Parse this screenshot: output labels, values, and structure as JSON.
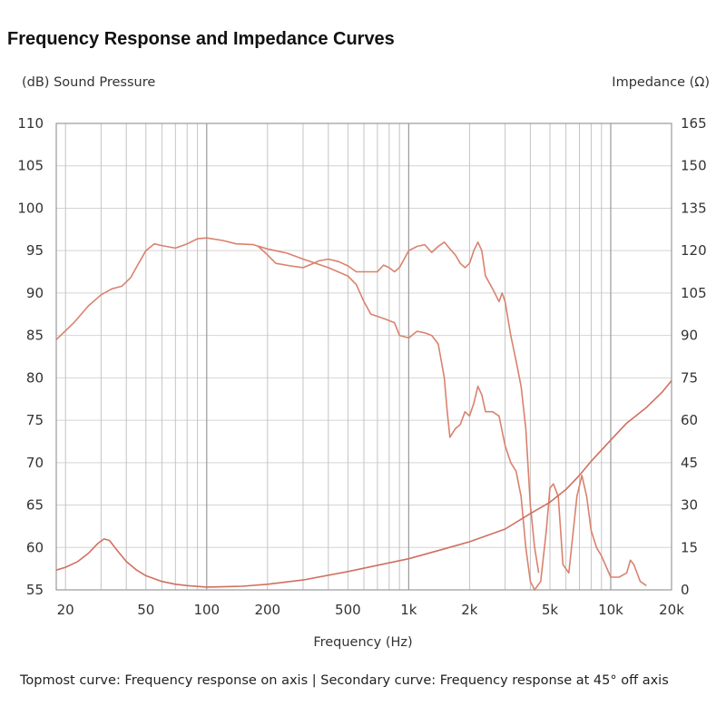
{
  "chart_data": {
    "type": "line",
    "title": "Frequency Response and Impedance Curves",
    "xlabel": "Frequency (Hz)",
    "ylabel_left": "(dB) Sound Pressure",
    "ylabel_right": "Impedance (Ω)",
    "xscale": "log",
    "xlim": [
      18,
      20000
    ],
    "ylim_left": [
      55,
      110
    ],
    "ylim_right": [
      0,
      165
    ],
    "grid": true,
    "x_ticks": [
      {
        "value": 20,
        "label": "20"
      },
      {
        "value": 50,
        "label": "50"
      },
      {
        "value": 100,
        "label": "100"
      },
      {
        "value": 200,
        "label": "200"
      },
      {
        "value": 500,
        "label": "500"
      },
      {
        "value": 1000,
        "label": "1k"
      },
      {
        "value": 2000,
        "label": "2k"
      },
      {
        "value": 5000,
        "label": "5k"
      },
      {
        "value": 10000,
        "label": "10k"
      },
      {
        "value": 20000,
        "label": "20k"
      }
    ],
    "y_ticks_left": [
      "55",
      "60",
      "65",
      "70",
      "75",
      "80",
      "85",
      "90",
      "95",
      "100",
      "105",
      "110"
    ],
    "y_ticks_right": [
      "0",
      "15",
      "30",
      "45",
      "60",
      "75",
      "90",
      "105",
      "120",
      "135",
      "150",
      "165"
    ],
    "caption": "Topmost curve: Frequency response on axis  |  Secondary curve: Frequency response at 45° off axis",
    "series": [
      {
        "axis": "left",
        "color": "#d9826e",
        "points": [
          [
            18,
            84.5
          ],
          [
            22,
            86.5
          ],
          [
            26,
            88.5
          ],
          [
            30,
            89.8
          ],
          [
            34,
            90.5
          ],
          [
            38,
            90.8
          ],
          [
            42,
            91.8
          ],
          [
            46,
            93.5
          ],
          [
            50,
            95
          ],
          [
            55,
            95.8
          ],
          [
            60,
            95.6
          ],
          [
            70,
            95.3
          ],
          [
            80,
            95.8
          ],
          [
            90,
            96.4
          ],
          [
            100,
            96.5
          ],
          [
            120,
            96.2
          ],
          [
            140,
            95.8
          ],
          [
            170,
            95.7
          ],
          [
            200,
            95.2
          ],
          [
            250,
            94.7
          ],
          [
            300,
            94
          ],
          [
            400,
            93
          ],
          [
            500,
            92
          ],
          [
            550,
            91
          ],
          [
            600,
            89
          ],
          [
            650,
            87.5
          ],
          [
            750,
            87
          ],
          [
            850,
            86.5
          ],
          [
            900,
            85
          ],
          [
            1000,
            84.7
          ],
          [
            1100,
            85.5
          ],
          [
            1200,
            85.3
          ],
          [
            1300,
            85
          ],
          [
            1400,
            84
          ],
          [
            1500,
            80
          ],
          [
            1550,
            76
          ],
          [
            1600,
            73
          ],
          [
            1700,
            74
          ],
          [
            1800,
            74.5
          ],
          [
            1900,
            76
          ],
          [
            2000,
            75.5
          ],
          [
            2100,
            77
          ],
          [
            2200,
            79
          ],
          [
            2300,
            78
          ],
          [
            2400,
            76
          ],
          [
            2600,
            76
          ],
          [
            2800,
            75.5
          ],
          [
            3000,
            72
          ],
          [
            3200,
            70
          ],
          [
            3400,
            69
          ],
          [
            3600,
            66
          ],
          [
            3800,
            60
          ],
          [
            4000,
            56
          ],
          [
            4200,
            55
          ],
          [
            4500,
            56
          ],
          [
            4800,
            62
          ],
          [
            5000,
            67
          ],
          [
            5200,
            67.5
          ],
          [
            5500,
            66
          ],
          [
            5800,
            58
          ],
          [
            6200,
            57
          ],
          [
            6800,
            66
          ],
          [
            7200,
            68.5
          ],
          [
            7600,
            66
          ],
          [
            8000,
            62
          ],
          [
            8500,
            60
          ],
          [
            9000,
            59
          ],
          [
            10000,
            56.5
          ],
          [
            11000,
            56.5
          ],
          [
            12000,
            57
          ],
          [
            12500,
            58.5
          ],
          [
            13000,
            58
          ],
          [
            14000,
            56
          ],
          [
            15000,
            55.5
          ]
        ]
      },
      {
        "axis": "left",
        "color": "#d9826e",
        "points": [
          [
            180,
            95.5
          ],
          [
            200,
            94.5
          ],
          [
            220,
            93.5
          ],
          [
            260,
            93.2
          ],
          [
            300,
            93
          ],
          [
            330,
            93.4
          ],
          [
            360,
            93.8
          ],
          [
            400,
            94
          ],
          [
            450,
            93.7
          ],
          [
            500,
            93.2
          ],
          [
            550,
            92.5
          ],
          [
            650,
            92.5
          ],
          [
            700,
            92.5
          ],
          [
            750,
            93.3
          ],
          [
            800,
            93
          ],
          [
            850,
            92.5
          ],
          [
            900,
            93
          ],
          [
            1000,
            95
          ],
          [
            1100,
            95.5
          ],
          [
            1200,
            95.7
          ],
          [
            1300,
            94.8
          ],
          [
            1400,
            95.5
          ],
          [
            1500,
            96
          ],
          [
            1600,
            95.2
          ],
          [
            1700,
            94.5
          ],
          [
            1800,
            93.5
          ],
          [
            1900,
            93
          ],
          [
            2000,
            93.5
          ],
          [
            2100,
            95
          ],
          [
            2200,
            96
          ],
          [
            2300,
            95
          ],
          [
            2400,
            92
          ],
          [
            2600,
            90.5
          ],
          [
            2800,
            89
          ],
          [
            2900,
            90
          ],
          [
            3000,
            89
          ],
          [
            3200,
            85
          ],
          [
            3400,
            82
          ],
          [
            3600,
            79
          ],
          [
            3800,
            74
          ],
          [
            4000,
            65
          ],
          [
            4200,
            60
          ],
          [
            4400,
            57
          ]
        ]
      },
      {
        "axis": "right",
        "color": "#cf7060",
        "points": [
          [
            18,
            7
          ],
          [
            20,
            8
          ],
          [
            23,
            10
          ],
          [
            26,
            13
          ],
          [
            29,
            16.5
          ],
          [
            31,
            18
          ],
          [
            33,
            17.5
          ],
          [
            36,
            14
          ],
          [
            40,
            10
          ],
          [
            45,
            7
          ],
          [
            50,
            5
          ],
          [
            60,
            3
          ],
          [
            70,
            2
          ],
          [
            80,
            1.5
          ],
          [
            100,
            1
          ],
          [
            150,
            1.3
          ],
          [
            200,
            2
          ],
          [
            300,
            3.5
          ],
          [
            500,
            6.5
          ],
          [
            1000,
            11
          ],
          [
            1500,
            14.5
          ],
          [
            2000,
            17
          ],
          [
            3000,
            21.5
          ],
          [
            4000,
            27
          ],
          [
            5000,
            31
          ],
          [
            6000,
            35.5
          ],
          [
            7000,
            40.5
          ],
          [
            8000,
            45.5
          ],
          [
            10000,
            53
          ],
          [
            12000,
            59
          ],
          [
            15000,
            64.5
          ],
          [
            18000,
            70
          ],
          [
            20000,
            74
          ]
        ]
      }
    ]
  }
}
